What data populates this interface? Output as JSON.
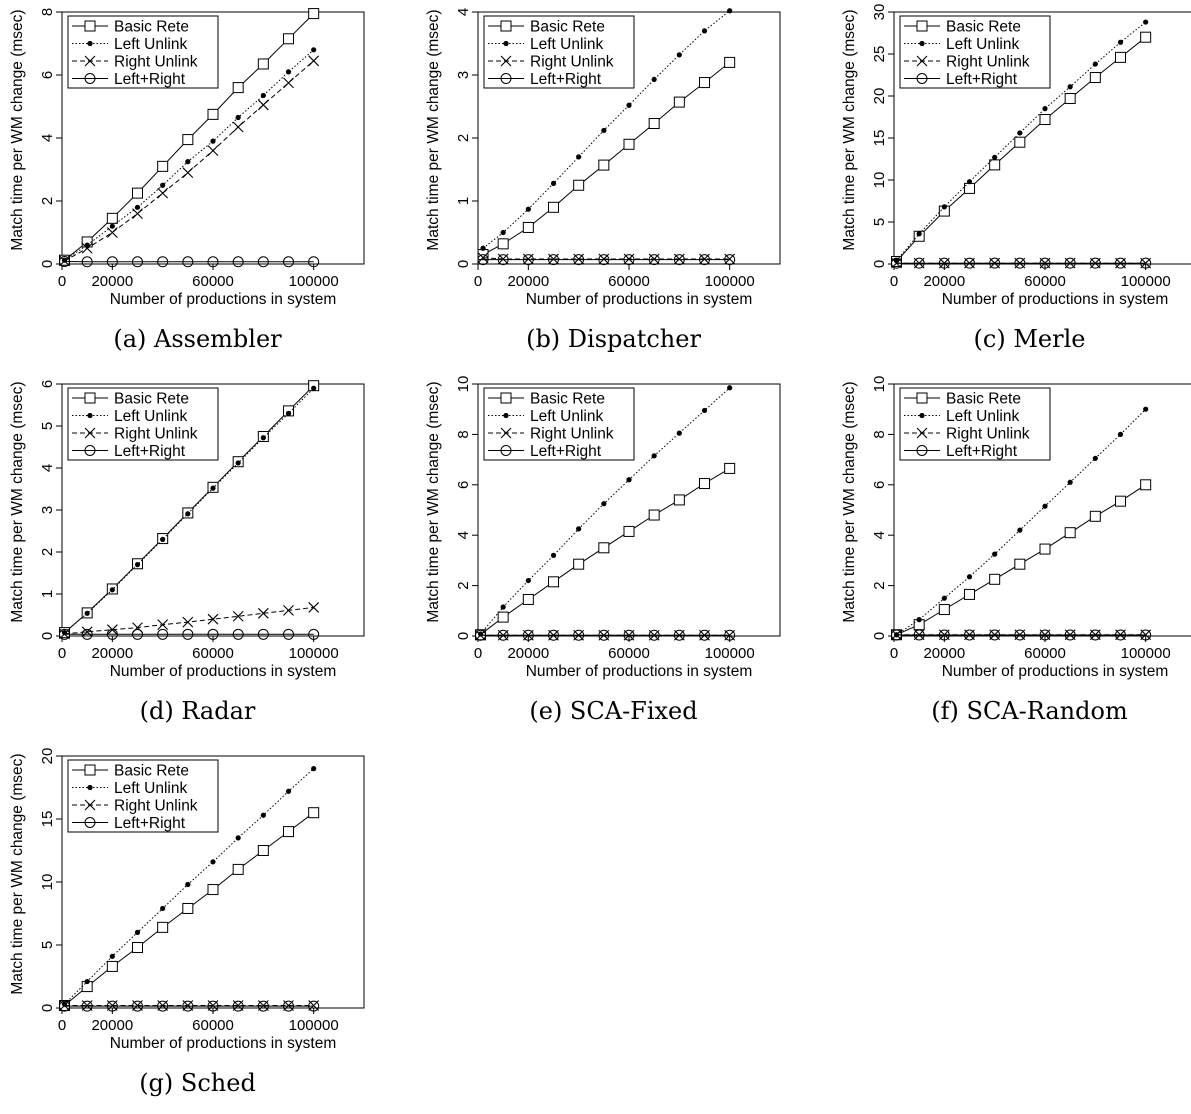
{
  "shared": {
    "xlabel": "Number of productions in system",
    "ylabel": "Match time per WM change (msec)",
    "x_ticks": [
      0,
      20000,
      60000,
      100000
    ],
    "legend": [
      "Basic Rete",
      "Left Unlink",
      "Right Unlink",
      "Left+Right"
    ]
  },
  "chart_data": [
    {
      "type": "line",
      "caption": "(a) Assembler",
      "xlabel": "Number of productions in system",
      "ylabel": "Match time per WM change (msec)",
      "xlim": [
        0,
        120000
      ],
      "ylim": [
        0,
        8
      ],
      "y_ticks": [
        0,
        2,
        4,
        6,
        8
      ],
      "legend_position": "top-left",
      "x": [
        1000,
        10000,
        20000,
        30000,
        40000,
        50000,
        60000,
        70000,
        80000,
        90000,
        100000
      ],
      "series": [
        {
          "name": "Basic Rete",
          "marker": "square",
          "line": "solid",
          "values": [
            0.12,
            0.7,
            1.45,
            2.25,
            3.1,
            3.95,
            4.75,
            5.6,
            6.35,
            7.15,
            7.95
          ]
        },
        {
          "name": "Left Unlink",
          "marker": "dot",
          "line": "dotted",
          "values": [
            0.12,
            0.6,
            1.2,
            1.8,
            2.5,
            3.25,
            3.9,
            4.65,
            5.35,
            6.1,
            6.8
          ]
        },
        {
          "name": "Right Unlink",
          "marker": "x",
          "line": "dashed",
          "values": [
            0.1,
            0.5,
            1.0,
            1.6,
            2.25,
            2.9,
            3.6,
            4.35,
            5.05,
            5.75,
            6.45
          ]
        },
        {
          "name": "Left+Right",
          "marker": "circle",
          "line": "solid",
          "values": [
            0.08,
            0.07,
            0.07,
            0.07,
            0.07,
            0.07,
            0.07,
            0.07,
            0.07,
            0.07,
            0.07
          ]
        }
      ]
    },
    {
      "type": "line",
      "caption": "(b) Dispatcher",
      "xlabel": "Number of productions in system",
      "ylabel": "Match time per WM change (msec)",
      "xlim": [
        0,
        120000
      ],
      "ylim": [
        0,
        4
      ],
      "y_ticks": [
        0,
        1,
        2,
        3,
        4
      ],
      "legend_position": "top-left",
      "x": [
        2000,
        10000,
        20000,
        30000,
        40000,
        50000,
        60000,
        70000,
        80000,
        90000,
        100000
      ],
      "series": [
        {
          "name": "Basic Rete",
          "marker": "square",
          "line": "solid",
          "values": [
            0.15,
            0.32,
            0.58,
            0.9,
            1.25,
            1.57,
            1.9,
            2.23,
            2.57,
            2.88,
            3.2
          ]
        },
        {
          "name": "Left Unlink",
          "marker": "dot",
          "line": "dotted",
          "values": [
            0.25,
            0.5,
            0.87,
            1.28,
            1.7,
            2.12,
            2.52,
            2.93,
            3.32,
            3.7,
            4.02
          ]
        },
        {
          "name": "Right Unlink",
          "marker": "x",
          "line": "dashed",
          "values": [
            0.1,
            0.08,
            0.08,
            0.08,
            0.08,
            0.08,
            0.08,
            0.08,
            0.08,
            0.08,
            0.08
          ]
        },
        {
          "name": "Left+Right",
          "marker": "circle",
          "line": "solid",
          "values": [
            0.07,
            0.07,
            0.07,
            0.07,
            0.07,
            0.07,
            0.07,
            0.07,
            0.07,
            0.07,
            0.07
          ]
        }
      ]
    },
    {
      "type": "line",
      "caption": "(c) Merle",
      "xlabel": "Number of productions in system",
      "ylabel": "Match time per WM change (msec)",
      "xlim": [
        0,
        120000
      ],
      "ylim": [
        0,
        30
      ],
      "y_ticks": [
        0,
        5,
        10,
        15,
        20,
        25,
        30
      ],
      "legend_position": "top-left",
      "x": [
        1000,
        10000,
        20000,
        30000,
        40000,
        50000,
        60000,
        70000,
        80000,
        90000,
        100000
      ],
      "series": [
        {
          "name": "Basic Rete",
          "marker": "square",
          "line": "solid",
          "values": [
            0.3,
            3.3,
            6.3,
            9.0,
            11.8,
            14.5,
            17.2,
            19.7,
            22.2,
            24.6,
            27.0
          ]
        },
        {
          "name": "Left Unlink",
          "marker": "dot",
          "line": "dotted",
          "values": [
            0.4,
            3.6,
            6.8,
            9.8,
            12.7,
            15.6,
            18.5,
            21.1,
            23.8,
            26.4,
            28.8
          ]
        },
        {
          "name": "Right Unlink",
          "marker": "x",
          "line": "dashed",
          "values": [
            0.1,
            0.1,
            0.1,
            0.1,
            0.1,
            0.1,
            0.1,
            0.1,
            0.1,
            0.1,
            0.1
          ]
        },
        {
          "name": "Left+Right",
          "marker": "circle",
          "line": "solid",
          "values": [
            0.1,
            0.1,
            0.1,
            0.1,
            0.1,
            0.1,
            0.1,
            0.1,
            0.1,
            0.1,
            0.1
          ]
        }
      ]
    },
    {
      "type": "line",
      "caption": "(d) Radar",
      "xlabel": "Number of productions in system",
      "ylabel": "Match time per WM change (msec)",
      "xlim": [
        0,
        120000
      ],
      "ylim": [
        0,
        6
      ],
      "y_ticks": [
        0,
        1,
        2,
        3,
        4,
        5,
        6
      ],
      "legend_position": "top-left",
      "x": [
        1000,
        10000,
        20000,
        30000,
        40000,
        50000,
        60000,
        70000,
        80000,
        90000,
        100000
      ],
      "series": [
        {
          "name": "Basic Rete",
          "marker": "square",
          "line": "solid",
          "values": [
            0.08,
            0.55,
            1.12,
            1.72,
            2.32,
            2.93,
            3.54,
            4.15,
            4.75,
            5.36,
            5.96
          ]
        },
        {
          "name": "Left Unlink",
          "marker": "dot",
          "line": "dotted",
          "values": [
            0.08,
            0.54,
            1.1,
            1.7,
            2.3,
            2.91,
            3.52,
            4.12,
            4.72,
            5.3,
            5.9
          ]
        },
        {
          "name": "Right Unlink",
          "marker": "x",
          "line": "dashed",
          "values": [
            0.05,
            0.1,
            0.15,
            0.2,
            0.27,
            0.33,
            0.4,
            0.47,
            0.54,
            0.61,
            0.68
          ]
        },
        {
          "name": "Left+Right",
          "marker": "circle",
          "line": "solid",
          "values": [
            0.04,
            0.04,
            0.04,
            0.04,
            0.04,
            0.04,
            0.04,
            0.04,
            0.04,
            0.04,
            0.04
          ]
        }
      ]
    },
    {
      "type": "line",
      "caption": "(e) SCA-Fixed",
      "xlabel": "Number of productions in system",
      "ylabel": "Match time per WM change (msec)",
      "xlim": [
        0,
        120000
      ],
      "ylim": [
        0,
        10
      ],
      "y_ticks": [
        0,
        2,
        4,
        6,
        8,
        10
      ],
      "legend_position": "top-left",
      "x": [
        1000,
        10000,
        20000,
        30000,
        40000,
        50000,
        60000,
        70000,
        80000,
        90000,
        100000
      ],
      "series": [
        {
          "name": "Basic Rete",
          "marker": "square",
          "line": "solid",
          "values": [
            0.05,
            0.75,
            1.45,
            2.15,
            2.85,
            3.5,
            4.15,
            4.8,
            5.4,
            6.05,
            6.65
          ]
        },
        {
          "name": "Left Unlink",
          "marker": "dot",
          "line": "dotted",
          "values": [
            0.08,
            1.15,
            2.2,
            3.2,
            4.25,
            5.25,
            6.2,
            7.15,
            8.05,
            8.95,
            9.85
          ]
        },
        {
          "name": "Right Unlink",
          "marker": "x",
          "line": "dashed",
          "values": [
            0.03,
            0.03,
            0.03,
            0.03,
            0.03,
            0.03,
            0.03,
            0.03,
            0.03,
            0.03,
            0.03
          ]
        },
        {
          "name": "Left+Right",
          "marker": "circle",
          "line": "solid",
          "values": [
            0.03,
            0.03,
            0.03,
            0.03,
            0.03,
            0.03,
            0.03,
            0.03,
            0.03,
            0.03,
            0.03
          ]
        }
      ]
    },
    {
      "type": "line",
      "caption": "(f) SCA-Random",
      "xlabel": "Number of productions in system",
      "ylabel": "Match time per WM change (msec)",
      "xlim": [
        0,
        120000
      ],
      "ylim": [
        0,
        10
      ],
      "y_ticks": [
        0,
        2,
        4,
        6,
        8,
        10
      ],
      "legend_position": "top-left",
      "x": [
        1000,
        10000,
        20000,
        30000,
        40000,
        50000,
        60000,
        70000,
        80000,
        90000,
        100000
      ],
      "series": [
        {
          "name": "Basic Rete",
          "marker": "square",
          "line": "solid",
          "values": [
            0.05,
            0.45,
            1.05,
            1.65,
            2.25,
            2.85,
            3.45,
            4.1,
            4.75,
            5.35,
            6.0
          ]
        },
        {
          "name": "Left Unlink",
          "marker": "dot",
          "line": "dotted",
          "values": [
            0.05,
            0.65,
            1.5,
            2.35,
            3.25,
            4.2,
            5.15,
            6.1,
            7.05,
            8.0,
            9.0
          ]
        },
        {
          "name": "Right Unlink",
          "marker": "x",
          "line": "dashed",
          "values": [
            0.05,
            0.05,
            0.05,
            0.05,
            0.05,
            0.05,
            0.05,
            0.05,
            0.05,
            0.05,
            0.05
          ]
        },
        {
          "name": "Left+Right",
          "marker": "circle",
          "line": "solid",
          "values": [
            0.04,
            0.04,
            0.04,
            0.04,
            0.04,
            0.04,
            0.04,
            0.04,
            0.04,
            0.04,
            0.04
          ]
        }
      ]
    },
    {
      "type": "line",
      "caption": "(g) Sched",
      "xlabel": "Number of productions in system",
      "ylabel": "Match time per WM change (msec)",
      "xlim": [
        0,
        120000
      ],
      "ylim": [
        0,
        20
      ],
      "y_ticks": [
        0,
        5,
        10,
        15,
        20
      ],
      "legend_position": "top-left",
      "x": [
        1000,
        10000,
        20000,
        30000,
        40000,
        50000,
        60000,
        70000,
        80000,
        90000,
        100000
      ],
      "series": [
        {
          "name": "Basic Rete",
          "marker": "square",
          "line": "solid",
          "values": [
            0.2,
            1.7,
            3.3,
            4.8,
            6.4,
            7.9,
            9.4,
            11.0,
            12.5,
            14.0,
            15.5
          ]
        },
        {
          "name": "Left Unlink",
          "marker": "dot",
          "line": "dotted",
          "values": [
            0.3,
            2.1,
            4.1,
            6.0,
            7.9,
            9.8,
            11.6,
            13.5,
            15.3,
            17.2,
            19.0
          ]
        },
        {
          "name": "Right Unlink",
          "marker": "x",
          "line": "dashed",
          "values": [
            0.2,
            0.2,
            0.2,
            0.2,
            0.2,
            0.2,
            0.2,
            0.2,
            0.2,
            0.2,
            0.2
          ]
        },
        {
          "name": "Left+Right",
          "marker": "circle",
          "line": "solid",
          "values": [
            0.15,
            0.15,
            0.15,
            0.15,
            0.15,
            0.15,
            0.15,
            0.15,
            0.15,
            0.15,
            0.15
          ]
        }
      ]
    }
  ]
}
